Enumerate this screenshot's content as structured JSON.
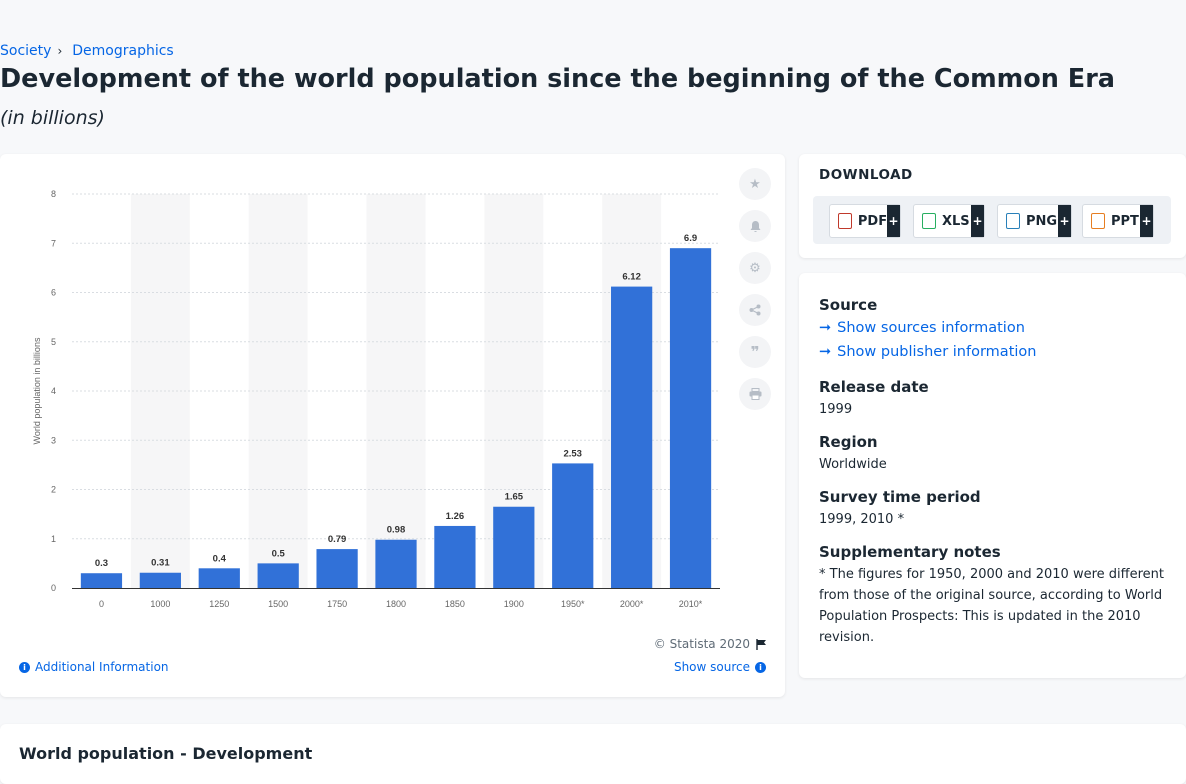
{
  "breadcrumb": {
    "item1": "Society",
    "sep": "›",
    "item2": "Demographics"
  },
  "title": "Development of the world population since the beginning of the Common Era",
  "subtitle": "(in billions)",
  "chart_data": {
    "type": "bar",
    "categories": [
      "0",
      "1000",
      "1250",
      "1500",
      "1750",
      "1800",
      "1850",
      "1900",
      "1950*",
      "2000*",
      "2010*"
    ],
    "values": [
      0.3,
      0.31,
      0.4,
      0.5,
      0.79,
      0.98,
      1.26,
      1.65,
      2.53,
      6.12,
      6.9
    ],
    "value_labels": [
      "0.3",
      "0.31",
      "0.4",
      "0.5",
      "0.79",
      "0.98",
      "1.26",
      "1.65",
      "2.53",
      "6.12",
      "6.9"
    ],
    "ylabel": "World population in billions",
    "xlabel": "",
    "ylim": [
      0,
      8
    ],
    "yticks": [
      "0",
      "1",
      "2",
      "3",
      "4",
      "5",
      "6",
      "7",
      "8"
    ],
    "grid": true,
    "bar_color": "#3171d8",
    "alt_band_color": "#f6f6f7"
  },
  "chart_footer": {
    "copyright": "© Statista 2020",
    "additional_info": "Additional Information",
    "show_source": "Show source"
  },
  "tools": [
    "star-icon",
    "bell-icon",
    "gear-icon",
    "share-icon",
    "quote-icon",
    "print-icon"
  ],
  "download": {
    "title": "DOWNLOAD",
    "buttons": [
      {
        "label": "PDF",
        "plus": "+"
      },
      {
        "label": "XLS",
        "plus": "+"
      },
      {
        "label": "PNG",
        "plus": "+"
      },
      {
        "label": "PPT",
        "plus": "+"
      }
    ]
  },
  "meta": {
    "source_heading": "Source",
    "show_sources": "Show sources information",
    "show_publisher": "Show publisher information",
    "release_heading": "Release date",
    "release_value": "1999",
    "region_heading": "Region",
    "region_value": "Worldwide",
    "survey_heading": "Survey time period",
    "survey_value": "1999, 2010 *",
    "notes_heading": "Supplementary notes",
    "notes_value": "* The figures for 1950, 2000 and 2010 were different from those of the original source, according to World Population Prospects: This is updated in the 2010 revision."
  },
  "bottom": {
    "title": "World population - Development"
  }
}
